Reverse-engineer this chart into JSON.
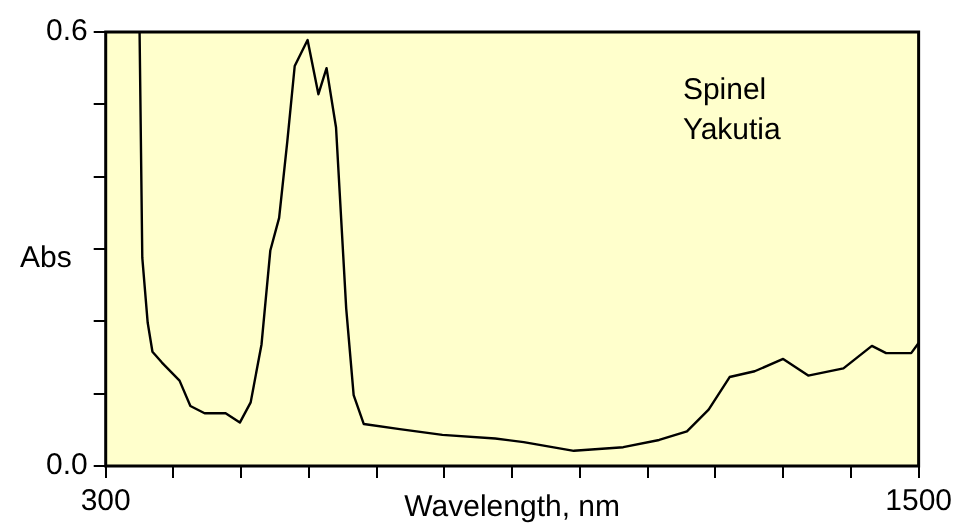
{
  "chart_data": {
    "type": "line",
    "xlabel": "Wavelength, nm",
    "ylabel": "Abs",
    "annotations": [
      "Spinel\nYakutia"
    ],
    "x": [
      350,
      354,
      362,
      369,
      383,
      409,
      425,
      446,
      477,
      498,
      514,
      530,
      543,
      556,
      568,
      579,
      598,
      614,
      626,
      640,
      655,
      666,
      681,
      734,
      797,
      875,
      917,
      991,
      1064,
      1117,
      1158,
      1190,
      1221,
      1258,
      1300,
      1337,
      1389,
      1431,
      1452,
      1489,
      1500
    ],
    "series": [
      {
        "color": "#000000",
        "values": [
          0.6,
          0.288,
          0.198,
          0.158,
          0.143,
          0.118,
          0.083,
          0.073,
          0.073,
          0.06,
          0.088,
          0.168,
          0.298,
          0.343,
          0.448,
          0.553,
          0.589,
          0.514,
          0.55,
          0.468,
          0.218,
          0.098,
          0.058,
          0.051,
          0.043,
          0.038,
          0.033,
          0.021,
          0.026,
          0.036,
          0.048,
          0.078,
          0.123,
          0.131,
          0.148,
          0.125,
          0.135,
          0.166,
          0.156,
          0.156,
          0.17
        ]
      }
    ],
    "xlim": [
      300,
      1500
    ],
    "xticks": [
      300,
      {
        "value": 400,
        "label": null
      },
      {
        "value": 500,
        "label": null
      },
      {
        "value": 600,
        "label": null
      },
      {
        "value": 700,
        "label": null
      },
      {
        "value": 800,
        "label": null
      },
      {
        "value": 900,
        "label": null
      },
      {
        "value": 1000,
        "label": null
      },
      {
        "value": 1100,
        "label": null
      },
      {
        "value": 1200,
        "label": null
      },
      {
        "value": 1300,
        "label": null
      },
      {
        "value": 1400,
        "label": null
      },
      1500
    ],
    "ylim": [
      0,
      0.6
    ],
    "yticks": [
      {
        "value": 0,
        "label": "0.0"
      },
      {
        "value": 0.1,
        "label": null
      },
      {
        "value": 0.2,
        "label": null
      },
      {
        "value": 0.3,
        "label": null
      },
      {
        "value": 0.4,
        "label": null
      },
      {
        "value": 0.5,
        "label": null
      },
      0.6
    ],
    "grid": false,
    "legend": false,
    "marker": "none",
    "line_style": "solid"
  }
}
